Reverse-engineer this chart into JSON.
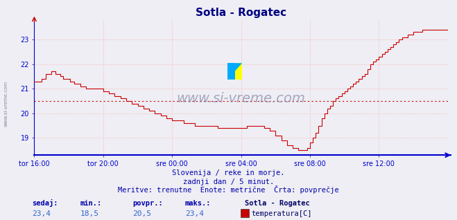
{
  "title": "Sotla - Rogatec",
  "background_color": "#eeeef4",
  "plot_bg_color": "#eeeef4",
  "line_color": "#cc0000",
  "avg_line_color": "#cc0000",
  "grid_color": "#ffaaaa",
  "axis_color": "#0000cc",
  "text_color": "#0000aa",
  "ylim": [
    18.3,
    23.8
  ],
  "yticks": [
    19,
    20,
    21,
    22,
    23
  ],
  "avg_value": 20.5,
  "min_val": 18.5,
  "max_val": 23.4,
  "subtitle1": "Slovenija / reke in morje.",
  "subtitle2": "zadnji dan / 5 minut.",
  "subtitle3": "Meritve: trenutne  Enote: metrične  Črta: povprečje",
  "footer_labels": [
    "sedaj:",
    "min.:",
    "povpr.:",
    "maks.:"
  ],
  "footer_vals": [
    "23,4",
    "18,5",
    "20,5",
    "23,4"
  ],
  "footer_station": "Sotla - Rogatec",
  "footer_series": "temperatura[C]",
  "watermark": "www.si-vreme.com",
  "xtick_labels": [
    "tor 16:00",
    "tor 20:00",
    "sre 00:00",
    "sre 04:00",
    "sre 08:00",
    "sre 12:00"
  ],
  "xtick_positions": [
    0,
    48,
    96,
    144,
    192,
    240
  ],
  "n_points": 289
}
